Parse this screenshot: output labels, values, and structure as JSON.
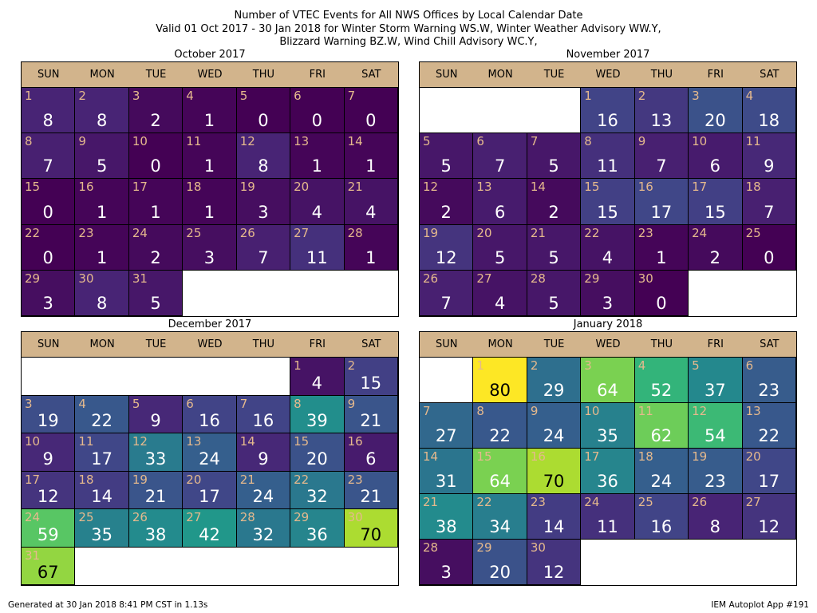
{
  "title_lines": [
    "Number of VTEC Events for All NWS Offices by Local Calendar Date",
    "Valid 01 Oct 2017 - 30 Jan 2018 for Winter Storm Warning WS.W, Winter Weather Advisory WW.Y,",
    "Blizzard Warning BZ.W, Wind Chill Advisory WC.Y,"
  ],
  "footer": {
    "left": "Generated at 30 Jan 2018 8:41 PM CST in 1.13s",
    "right": "IEM Autoplot App #191"
  },
  "weekdays": [
    "SUN",
    "MON",
    "TUE",
    "WED",
    "THU",
    "FRI",
    "SAT"
  ],
  "colormap": "viridis",
  "color_range": [
    0,
    80
  ],
  "chart_data": [
    {
      "type": "heatmap",
      "title": "October 2017",
      "first_weekday": 0,
      "days": [
        {
          "day": 1,
          "count": 8
        },
        {
          "day": 2,
          "count": 8
        },
        {
          "day": 3,
          "count": 2
        },
        {
          "day": 4,
          "count": 1
        },
        {
          "day": 5,
          "count": 0
        },
        {
          "day": 6,
          "count": 0
        },
        {
          "day": 7,
          "count": 0
        },
        {
          "day": 8,
          "count": 7
        },
        {
          "day": 9,
          "count": 5
        },
        {
          "day": 10,
          "count": 0
        },
        {
          "day": 11,
          "count": 1
        },
        {
          "day": 12,
          "count": 8
        },
        {
          "day": 13,
          "count": 1
        },
        {
          "day": 14,
          "count": 1
        },
        {
          "day": 15,
          "count": 0
        },
        {
          "day": 16,
          "count": 1
        },
        {
          "day": 17,
          "count": 1
        },
        {
          "day": 18,
          "count": 1
        },
        {
          "day": 19,
          "count": 3
        },
        {
          "day": 20,
          "count": 4
        },
        {
          "day": 21,
          "count": 4
        },
        {
          "day": 22,
          "count": 0
        },
        {
          "day": 23,
          "count": 1
        },
        {
          "day": 24,
          "count": 2
        },
        {
          "day": 25,
          "count": 3
        },
        {
          "day": 26,
          "count": 7
        },
        {
          "day": 27,
          "count": 11
        },
        {
          "day": 28,
          "count": 1
        },
        {
          "day": 29,
          "count": 3
        },
        {
          "day": 30,
          "count": 8
        },
        {
          "day": 31,
          "count": 5
        }
      ]
    },
    {
      "type": "heatmap",
      "title": "November 2017",
      "first_weekday": 3,
      "days": [
        {
          "day": 1,
          "count": 16
        },
        {
          "day": 2,
          "count": 13
        },
        {
          "day": 3,
          "count": 20
        },
        {
          "day": 4,
          "count": 18
        },
        {
          "day": 5,
          "count": 5
        },
        {
          "day": 6,
          "count": 7
        },
        {
          "day": 7,
          "count": 5
        },
        {
          "day": 8,
          "count": 11
        },
        {
          "day": 9,
          "count": 7
        },
        {
          "day": 10,
          "count": 6
        },
        {
          "day": 11,
          "count": 9
        },
        {
          "day": 12,
          "count": 2
        },
        {
          "day": 13,
          "count": 6
        },
        {
          "day": 14,
          "count": 2
        },
        {
          "day": 15,
          "count": 15
        },
        {
          "day": 16,
          "count": 17
        },
        {
          "day": 17,
          "count": 15
        },
        {
          "day": 18,
          "count": 7
        },
        {
          "day": 19,
          "count": 12
        },
        {
          "day": 20,
          "count": 5
        },
        {
          "day": 21,
          "count": 5
        },
        {
          "day": 22,
          "count": 4
        },
        {
          "day": 23,
          "count": 1
        },
        {
          "day": 24,
          "count": 2
        },
        {
          "day": 25,
          "count": 0
        },
        {
          "day": 26,
          "count": 7
        },
        {
          "day": 27,
          "count": 4
        },
        {
          "day": 28,
          "count": 5
        },
        {
          "day": 29,
          "count": 3
        },
        {
          "day": 30,
          "count": 0
        }
      ]
    },
    {
      "type": "heatmap",
      "title": "December 2017",
      "first_weekday": 5,
      "days": [
        {
          "day": 1,
          "count": 4
        },
        {
          "day": 2,
          "count": 15
        },
        {
          "day": 3,
          "count": 19
        },
        {
          "day": 4,
          "count": 22
        },
        {
          "day": 5,
          "count": 9
        },
        {
          "day": 6,
          "count": 16
        },
        {
          "day": 7,
          "count": 16
        },
        {
          "day": 8,
          "count": 39
        },
        {
          "day": 9,
          "count": 21
        },
        {
          "day": 10,
          "count": 9
        },
        {
          "day": 11,
          "count": 17
        },
        {
          "day": 12,
          "count": 33
        },
        {
          "day": 13,
          "count": 24
        },
        {
          "day": 14,
          "count": 9
        },
        {
          "day": 15,
          "count": 20
        },
        {
          "day": 16,
          "count": 6
        },
        {
          "day": 17,
          "count": 12
        },
        {
          "day": 18,
          "count": 14
        },
        {
          "day": 19,
          "count": 21
        },
        {
          "day": 20,
          "count": 17
        },
        {
          "day": 21,
          "count": 24
        },
        {
          "day": 22,
          "count": 32
        },
        {
          "day": 23,
          "count": 21
        },
        {
          "day": 24,
          "count": 59
        },
        {
          "day": 25,
          "count": 35
        },
        {
          "day": 26,
          "count": 38
        },
        {
          "day": 27,
          "count": 42
        },
        {
          "day": 28,
          "count": 32
        },
        {
          "day": 29,
          "count": 36
        },
        {
          "day": 30,
          "count": 70
        },
        {
          "day": 31,
          "count": 67
        }
      ]
    },
    {
      "type": "heatmap",
      "title": "January 2018",
      "first_weekday": 1,
      "days": [
        {
          "day": 1,
          "count": 80
        },
        {
          "day": 2,
          "count": 29
        },
        {
          "day": 3,
          "count": 64
        },
        {
          "day": 4,
          "count": 52
        },
        {
          "day": 5,
          "count": 37
        },
        {
          "day": 6,
          "count": 23
        },
        {
          "day": 7,
          "count": 27
        },
        {
          "day": 8,
          "count": 22
        },
        {
          "day": 9,
          "count": 24
        },
        {
          "day": 10,
          "count": 35
        },
        {
          "day": 11,
          "count": 62
        },
        {
          "day": 12,
          "count": 54
        },
        {
          "day": 13,
          "count": 22
        },
        {
          "day": 14,
          "count": 31
        },
        {
          "day": 15,
          "count": 64
        },
        {
          "day": 16,
          "count": 70
        },
        {
          "day": 17,
          "count": 36
        },
        {
          "day": 18,
          "count": 24
        },
        {
          "day": 19,
          "count": 23
        },
        {
          "day": 20,
          "count": 17
        },
        {
          "day": 21,
          "count": 38
        },
        {
          "day": 22,
          "count": 34
        },
        {
          "day": 23,
          "count": 14
        },
        {
          "day": 24,
          "count": 11
        },
        {
          "day": 25,
          "count": 16
        },
        {
          "day": 26,
          "count": 8
        },
        {
          "day": 27,
          "count": 12
        },
        {
          "day": 28,
          "count": 3
        },
        {
          "day": 29,
          "count": 20
        },
        {
          "day": 30,
          "count": 12
        }
      ]
    }
  ]
}
